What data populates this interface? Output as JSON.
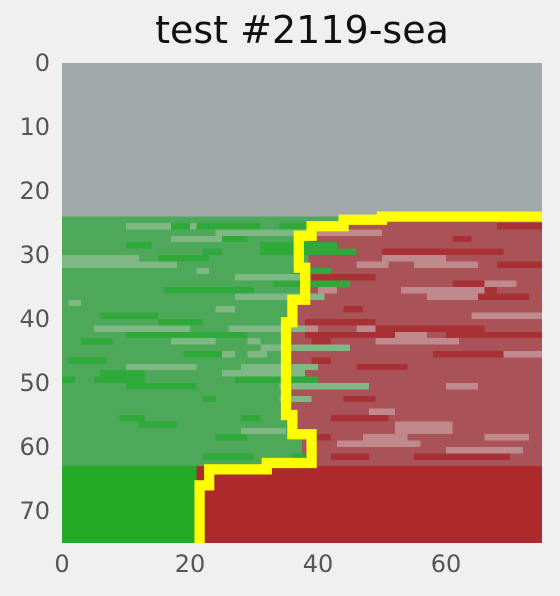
{
  "title": "test #2119-sea",
  "colors": {
    "sky": "#a2aaa9",
    "green_zone": "#4ea859",
    "green_dark": "#24aa27",
    "red_zone": "#a95257",
    "red_dark": "#ac2a2c",
    "boundary": "#ffff00",
    "background": "#f0f0f0"
  },
  "image": {
    "size": [
      75,
      75
    ],
    "sky_rows": [
      0,
      24
    ],
    "textured_rows": [
      24,
      63
    ],
    "solid_rows": [
      63,
      75
    ]
  },
  "axes": {
    "x_ticks": [
      "0",
      "20",
      "40",
      "60"
    ],
    "y_ticks": [
      "0",
      "10",
      "20",
      "30",
      "40",
      "50",
      "60",
      "70"
    ],
    "xlim": [
      0,
      75
    ],
    "ylim": [
      0,
      75
    ],
    "y_inverted": true,
    "grid": false
  }
}
